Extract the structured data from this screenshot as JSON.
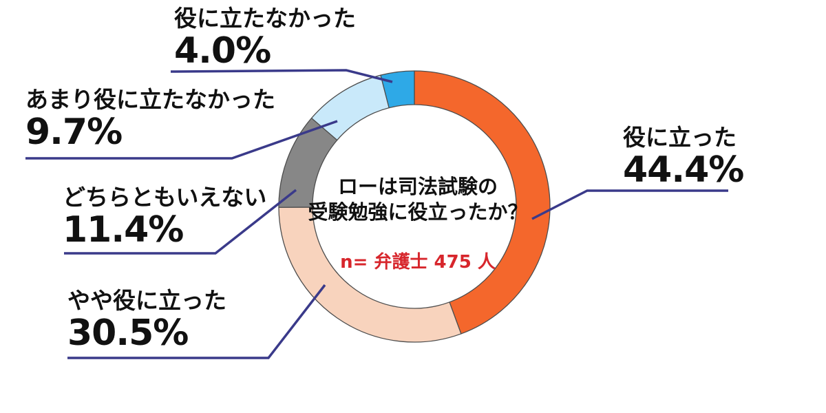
{
  "title_lines": [
    "ローは司法試験の",
    "受験勉強に役立ったか？"
  ],
  "sample_note": "n= 弁護士 475 人",
  "colors": {
    "background": "#ffffff",
    "text": "#111111",
    "leader_line": "#3a3a8a",
    "slice_outline": "#4d4d4d",
    "note_red": "#d7262c"
  },
  "chart_data": {
    "type": "pie",
    "subtype": "donut",
    "title": "ローは司法試験の受験勉強に役立ったか？",
    "annotation": "n= 弁護士 475 人",
    "unit": "%",
    "start_angle": "12-o-clock, clockwise",
    "legend_position": "outside-callouts",
    "categories": [
      "役に立った",
      "やや役に立った",
      "どちらともいえない",
      "あまり役に立たなかった",
      "役に立たなかった"
    ],
    "values": [
      44.4,
      30.5,
      11.4,
      9.7,
      4.0
    ],
    "slices": [
      {
        "label": "役に立った",
        "value": 44.4,
        "pct_label": "44.4%",
        "color": "#f4672c"
      },
      {
        "label": "やや役に立った",
        "value": 30.5,
        "pct_label": "30.5%",
        "color": "#f8d3bd"
      },
      {
        "label": "どちらともいえない",
        "value": 11.4,
        "pct_label": "11.4%",
        "color": "#878787"
      },
      {
        "label": "あまり役に立たなかった",
        "value": 9.7,
        "pct_label": "9.7%",
        "color": "#c9e9fa"
      },
      {
        "label": "役に立たなかった",
        "value": 4.0,
        "pct_label": "4.0%",
        "color": "#2ea9e7"
      }
    ]
  }
}
